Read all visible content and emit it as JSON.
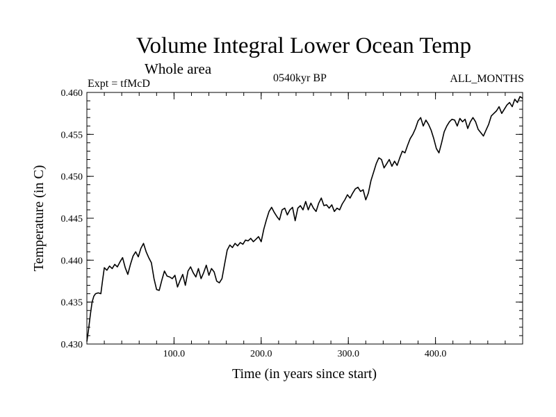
{
  "chart_data": {
    "type": "line",
    "title": "Volume Integral Lower Ocean Temp",
    "subtitle": "Whole area",
    "annotations": {
      "left": "Expt = tfMcD",
      "center": "0540kyr BP",
      "right": "ALL_MONTHS"
    },
    "xlabel": "Time (in years since start)",
    "ylabel": "Temperature (in C)",
    "xlim": [
      0,
      500
    ],
    "ylim": [
      0.43,
      0.46
    ],
    "x_ticks": [
      "100.0",
      "200.0",
      "300.0",
      "400.0"
    ],
    "y_ticks": [
      "0.430",
      "0.435",
      "0.440",
      "0.445",
      "0.450",
      "0.455",
      "0.460"
    ],
    "grid": false,
    "series": [
      {
        "points": [
          [
            0,
            0.4303
          ],
          [
            2,
            0.4318
          ],
          [
            4,
            0.4335
          ],
          [
            6,
            0.435
          ],
          [
            8,
            0.4357
          ],
          [
            10,
            0.436
          ],
          [
            13,
            0.4361
          ],
          [
            16,
            0.436
          ],
          [
            18,
            0.4376
          ],
          [
            20,
            0.4391
          ],
          [
            23,
            0.4388
          ],
          [
            26,
            0.4393
          ],
          [
            29,
            0.439
          ],
          [
            32,
            0.4395
          ],
          [
            35,
            0.4392
          ],
          [
            38,
            0.4398
          ],
          [
            41,
            0.4403
          ],
          [
            44,
            0.4391
          ],
          [
            47,
            0.4383
          ],
          [
            50,
            0.4395
          ],
          [
            53,
            0.4405
          ],
          [
            56,
            0.441
          ],
          [
            59,
            0.4404
          ],
          [
            62,
            0.4414
          ],
          [
            65,
            0.442
          ],
          [
            68,
            0.441
          ],
          [
            71,
            0.4403
          ],
          [
            74,
            0.4397
          ],
          [
            77,
            0.4378
          ],
          [
            80,
            0.4365
          ],
          [
            83,
            0.4364
          ],
          [
            86,
            0.4376
          ],
          [
            89,
            0.4387
          ],
          [
            92,
            0.4381
          ],
          [
            95,
            0.438
          ],
          [
            98,
            0.4378
          ],
          [
            101,
            0.4382
          ],
          [
            104,
            0.4368
          ],
          [
            107,
            0.4376
          ],
          [
            110,
            0.4383
          ],
          [
            113,
            0.437
          ],
          [
            116,
            0.4387
          ],
          [
            119,
            0.4392
          ],
          [
            122,
            0.4385
          ],
          [
            125,
            0.438
          ],
          [
            128,
            0.439
          ],
          [
            131,
            0.4378
          ],
          [
            134,
            0.4385
          ],
          [
            137,
            0.4394
          ],
          [
            140,
            0.4382
          ],
          [
            143,
            0.439
          ],
          [
            146,
            0.4386
          ],
          [
            149,
            0.4375
          ],
          [
            152,
            0.4373
          ],
          [
            155,
            0.4378
          ],
          [
            158,
            0.4395
          ],
          [
            161,
            0.4412
          ],
          [
            164,
            0.4418
          ],
          [
            167,
            0.4415
          ],
          [
            170,
            0.442
          ],
          [
            173,
            0.4417
          ],
          [
            176,
            0.4421
          ],
          [
            179,
            0.4419
          ],
          [
            182,
            0.4424
          ],
          [
            185,
            0.4423
          ],
          [
            188,
            0.4426
          ],
          [
            191,
            0.4422
          ],
          [
            194,
            0.4425
          ],
          [
            197,
            0.4428
          ],
          [
            200,
            0.4422
          ],
          [
            203,
            0.4437
          ],
          [
            206,
            0.4448
          ],
          [
            209,
            0.4458
          ],
          [
            212,
            0.4463
          ],
          [
            215,
            0.4457
          ],
          [
            218,
            0.4452
          ],
          [
            221,
            0.4448
          ],
          [
            224,
            0.446
          ],
          [
            227,
            0.4462
          ],
          [
            230,
            0.4454
          ],
          [
            233,
            0.446
          ],
          [
            236,
            0.4463
          ],
          [
            239,
            0.4447
          ],
          [
            242,
            0.4462
          ],
          [
            245,
            0.4465
          ],
          [
            248,
            0.446
          ],
          [
            251,
            0.447
          ],
          [
            254,
            0.446
          ],
          [
            257,
            0.4468
          ],
          [
            260,
            0.4462
          ],
          [
            263,
            0.4458
          ],
          [
            266,
            0.4468
          ],
          [
            269,
            0.4474
          ],
          [
            272,
            0.4465
          ],
          [
            275,
            0.4466
          ],
          [
            278,
            0.4462
          ],
          [
            281,
            0.4466
          ],
          [
            284,
            0.4458
          ],
          [
            287,
            0.4462
          ],
          [
            290,
            0.446
          ],
          [
            293,
            0.4467
          ],
          [
            296,
            0.4472
          ],
          [
            299,
            0.4478
          ],
          [
            302,
            0.4474
          ],
          [
            305,
            0.448
          ],
          [
            308,
            0.4485
          ],
          [
            311,
            0.4487
          ],
          [
            314,
            0.4482
          ],
          [
            317,
            0.4484
          ],
          [
            320,
            0.4472
          ],
          [
            323,
            0.448
          ],
          [
            326,
            0.4495
          ],
          [
            329,
            0.4505
          ],
          [
            332,
            0.4515
          ],
          [
            335,
            0.4522
          ],
          [
            338,
            0.452
          ],
          [
            341,
            0.451
          ],
          [
            344,
            0.4515
          ],
          [
            347,
            0.452
          ],
          [
            350,
            0.4512
          ],
          [
            353,
            0.4518
          ],
          [
            356,
            0.4513
          ],
          [
            359,
            0.4522
          ],
          [
            362,
            0.453
          ],
          [
            365,
            0.4528
          ],
          [
            368,
            0.4537
          ],
          [
            371,
            0.4545
          ],
          [
            374,
            0.455
          ],
          [
            377,
            0.4557
          ],
          [
            380,
            0.4566
          ],
          [
            383,
            0.457
          ],
          [
            386,
            0.456
          ],
          [
            389,
            0.4567
          ],
          [
            392,
            0.4562
          ],
          [
            395,
            0.4555
          ],
          [
            398,
            0.4545
          ],
          [
            401,
            0.4533
          ],
          [
            404,
            0.4528
          ],
          [
            407,
            0.454
          ],
          [
            410,
            0.4553
          ],
          [
            413,
            0.456
          ],
          [
            416,
            0.4565
          ],
          [
            419,
            0.4568
          ],
          [
            422,
            0.4567
          ],
          [
            425,
            0.456
          ],
          [
            428,
            0.4569
          ],
          [
            431,
            0.4565
          ],
          [
            434,
            0.4568
          ],
          [
            437,
            0.4557
          ],
          [
            440,
            0.4565
          ],
          [
            443,
            0.457
          ],
          [
            446,
            0.4565
          ],
          [
            449,
            0.4556
          ],
          [
            452,
            0.4552
          ],
          [
            455,
            0.4548
          ],
          [
            458,
            0.4555
          ],
          [
            461,
            0.4562
          ],
          [
            464,
            0.4572
          ],
          [
            467,
            0.4575
          ],
          [
            470,
            0.4578
          ],
          [
            473,
            0.4583
          ],
          [
            476,
            0.4575
          ],
          [
            479,
            0.458
          ],
          [
            482,
            0.4585
          ],
          [
            485,
            0.4588
          ],
          [
            488,
            0.4583
          ],
          [
            491,
            0.4592
          ],
          [
            494,
            0.4588
          ],
          [
            497,
            0.4595
          ],
          [
            500,
            0.4593
          ]
        ],
        "color": "#000000"
      }
    ]
  }
}
